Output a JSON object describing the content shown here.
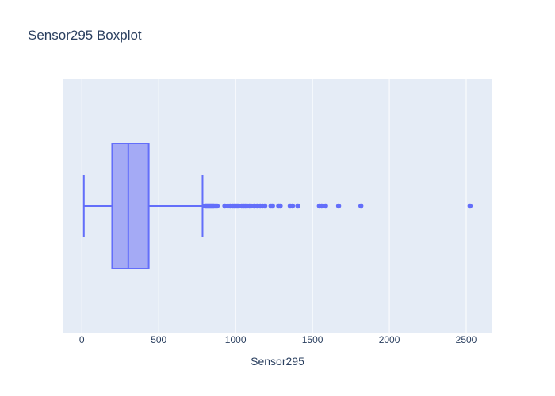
{
  "chart_data": {
    "type": "box",
    "orientation": "horizontal",
    "title": "Sensor295 Boxplot",
    "xlabel": "Sensor295",
    "ylabel": "",
    "xlim": [
      -120,
      2665
    ],
    "xticks": [
      0,
      500,
      1000,
      1500,
      2000,
      2500
    ],
    "grid": true,
    "legend": "none",
    "colors": {
      "plot_bg": "#e5ecf6",
      "grid": "#ffffff",
      "box_line": "#636efa",
      "box_fill": "#a4aaf5",
      "text": "#2a3f5f"
    },
    "series": [
      {
        "whisker_low": 13,
        "q1": 197,
        "median": 302,
        "q3": 435,
        "whisker_high": 785,
        "outliers": [
          800,
          805,
          810,
          815,
          820,
          825,
          830,
          835,
          840,
          845,
          850,
          855,
          860,
          870,
          880,
          930,
          950,
          965,
          980,
          990,
          1000,
          1010,
          1020,
          1040,
          1055,
          1065,
          1075,
          1090,
          1100,
          1120,
          1140,
          1160,
          1175,
          1190,
          1230,
          1240,
          1280,
          1290,
          1355,
          1370,
          1405,
          1545,
          1560,
          1585,
          1670,
          1815,
          2525
        ]
      }
    ]
  }
}
